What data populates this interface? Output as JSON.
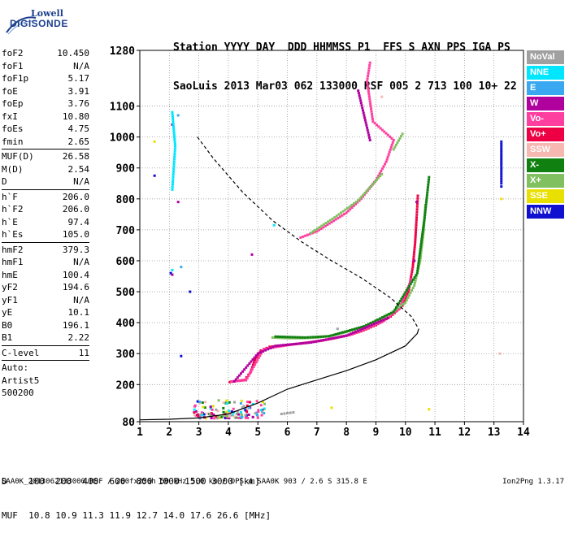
{
  "logo": {
    "line1": "Lowell",
    "line2": "DIGISONDE"
  },
  "header": {
    "line1": "Station YYYY DAY  DDD HHMMSS P1  FFS S AXN PPS IGA PS",
    "line2": "SaoLuis 2013 Mar03 062 133000 RSF 005 2 713 100 10+ 22"
  },
  "params": {
    "group1": [
      {
        "k": "foF2",
        "v": "10.450"
      },
      {
        "k": "foF1",
        "v": "N/A"
      },
      {
        "k": "foF1p",
        "v": "5.17"
      },
      {
        "k": "foE",
        "v": "3.91"
      },
      {
        "k": "foEp",
        "v": "3.76"
      },
      {
        "k": "fxI",
        "v": "10.80"
      },
      {
        "k": "foEs",
        "v": "4.75"
      },
      {
        "k": "fmin",
        "v": "2.65"
      }
    ],
    "group2": [
      {
        "k": "MUF(D)",
        "v": "26.58"
      },
      {
        "k": "M(D)",
        "v": "2.54"
      },
      {
        "k": "D",
        "v": "N/A"
      }
    ],
    "group3": [
      {
        "k": "h`F",
        "v": "206.0"
      },
      {
        "k": "h`F2",
        "v": "206.0"
      },
      {
        "k": "h`E",
        "v": "97.4"
      },
      {
        "k": "h`Es",
        "v": "105.0"
      }
    ],
    "group4": [
      {
        "k": "hmF2",
        "v": "379.3"
      },
      {
        "k": "hmF1",
        "v": "N/A"
      },
      {
        "k": "hmE",
        "v": "100.4"
      },
      {
        "k": "yF2",
        "v": "194.6"
      },
      {
        "k": "yF1",
        "v": "N/A"
      },
      {
        "k": "yE",
        "v": "10.1"
      },
      {
        "k": "B0",
        "v": "196.1"
      },
      {
        "k": "B1",
        "v": "2.22"
      }
    ],
    "group5": [
      {
        "k": "C-level",
        "v": "11"
      }
    ],
    "auto": [
      "Auto:",
      "Artist5",
      "500200"
    ]
  },
  "legend": [
    {
      "label": "NoVal",
      "color": "#a0a0a0"
    },
    {
      "label": "NNE",
      "color": "#00e6ff"
    },
    {
      "label": "E",
      "color": "#3aa8f0"
    },
    {
      "label": "W",
      "color": "#b0009e"
    },
    {
      "label": "Vo-",
      "color": "#ff3fa0"
    },
    {
      "label": "Vo+",
      "color": "#ee0044"
    },
    {
      "label": "SSW",
      "color": "#f6b8b0"
    },
    {
      "label": "X-",
      "color": "#108010"
    },
    {
      "label": "X+",
      "color": "#80c060"
    },
    {
      "label": "SSE",
      "color": "#e8e000"
    },
    {
      "label": "NNW",
      "color": "#1010d0"
    }
  ],
  "footer": {
    "line1": "D    100  200  400  600  800 1000 1500 3000 [km]",
    "line2": "MUF  10.8 10.9 11.3 11.9 12.7 14.0 17.6 26.6 [MHz]",
    "status": "SAA0K_2013062133000.RSF / 260fx256h 50 kHz 5.0 km / DPS-4 SAA0K 903 / 2.6 S 315.8 E",
    "version": "Ion2Png 1.3.17"
  },
  "chart_data": {
    "type": "scatter",
    "xlim": [
      1,
      14
    ],
    "ylim": [
      80,
      1280
    ],
    "x_ticks": [
      1,
      2,
      3,
      4,
      5,
      6,
      7,
      8,
      9,
      10,
      11,
      12,
      13,
      14
    ],
    "y_ticks": [
      80,
      200,
      300,
      400,
      500,
      600,
      700,
      800,
      900,
      1000,
      1100,
      1280
    ],
    "grid": true,
    "series": [
      {
        "name": "Vo+",
        "color": "#ee0044",
        "points": [
          [
            4.05,
            208
          ],
          [
            4.3,
            212
          ],
          [
            4.55,
            215
          ],
          [
            4.75,
            240
          ],
          [
            4.9,
            280
          ],
          [
            5.1,
            310
          ],
          [
            5.4,
            322
          ],
          [
            6.0,
            328
          ],
          [
            6.5,
            333
          ],
          [
            7.0,
            340
          ],
          [
            7.5,
            348
          ],
          [
            8.0,
            358
          ],
          [
            8.5,
            372
          ],
          [
            9.0,
            392
          ],
          [
            9.5,
            420
          ],
          [
            9.9,
            455
          ],
          [
            10.1,
            500
          ],
          [
            10.25,
            580
          ],
          [
            10.33,
            660
          ],
          [
            10.38,
            740
          ],
          [
            10.42,
            810
          ]
        ]
      },
      {
        "name": "Vo-",
        "color": "#ff3fa0",
        "points": [
          [
            4.1,
            210
          ],
          [
            4.6,
            214
          ],
          [
            5.2,
            315
          ],
          [
            6.2,
            330
          ],
          [
            7.2,
            342
          ],
          [
            8.2,
            362
          ],
          [
            9.2,
            402
          ],
          [
            9.8,
            445
          ],
          [
            10.2,
            540
          ],
          [
            6.45,
            675
          ],
          [
            7.0,
            695
          ],
          [
            7.5,
            725
          ],
          [
            8.0,
            755
          ],
          [
            8.5,
            800
          ],
          [
            9.0,
            860
          ],
          [
            9.35,
            920
          ],
          [
            9.6,
            990
          ],
          [
            8.9,
            1050
          ],
          [
            8.7,
            1180
          ],
          [
            8.8,
            1240
          ]
        ]
      },
      {
        "name": "X+",
        "color": "#80c060",
        "points": [
          [
            5.5,
            352
          ],
          [
            6.0,
            350
          ],
          [
            6.5,
            350
          ],
          [
            7.0,
            352
          ],
          [
            7.5,
            358
          ],
          [
            8.0,
            370
          ],
          [
            8.5,
            385
          ],
          [
            9.0,
            405
          ],
          [
            9.5,
            430
          ],
          [
            10.0,
            465
          ],
          [
            10.3,
            520
          ],
          [
            10.5,
            600
          ],
          [
            10.62,
            700
          ],
          [
            10.68,
            780
          ],
          [
            9.6,
            960
          ],
          [
            9.9,
            1010
          ],
          [
            6.8,
            690
          ],
          [
            7.6,
            740
          ],
          [
            8.4,
            795
          ],
          [
            9.2,
            880
          ]
        ]
      },
      {
        "name": "X-",
        "color": "#108010",
        "points": [
          [
            5.6,
            355
          ],
          [
            6.6,
            352
          ],
          [
            7.4,
            356
          ],
          [
            8.6,
            388
          ],
          [
            9.6,
            435
          ],
          [
            10.4,
            560
          ],
          [
            10.65,
            740
          ],
          [
            10.8,
            870
          ]
        ]
      },
      {
        "name": "W",
        "color": "#b0009e",
        "points": [
          [
            4.2,
            210
          ],
          [
            5.0,
            300
          ],
          [
            5.6,
            325
          ],
          [
            6.8,
            336
          ],
          [
            8.0,
            358
          ],
          [
            9.4,
            415
          ],
          [
            10.3,
            600
          ],
          [
            10.38,
            790
          ],
          [
            8.8,
            990
          ],
          [
            8.4,
            1150
          ],
          [
            2.1,
            1040
          ],
          [
            2.3,
            790
          ],
          [
            4.8,
            620
          ],
          [
            2.1,
            555
          ]
        ]
      },
      {
        "name": "NNE",
        "color": "#00e6ff",
        "points": [
          [
            2.1,
            1080
          ],
          [
            2.2,
            970
          ],
          [
            2.1,
            830
          ],
          [
            2.1,
            570
          ],
          [
            5.55,
            715
          ]
        ]
      },
      {
        "name": "E",
        "color": "#3aa8f0",
        "points": [
          [
            2.3,
            1070
          ],
          [
            2.4,
            580
          ]
        ]
      },
      {
        "name": "NNW",
        "color": "#1010d0",
        "points": [
          [
            1.5,
            875
          ],
          [
            2.05,
            560
          ],
          [
            2.4,
            292
          ],
          [
            2.7,
            500
          ],
          [
            13.25,
            985
          ],
          [
            13.25,
            850
          ],
          [
            13.25,
            840
          ]
        ]
      },
      {
        "name": "SSE",
        "color": "#e8e000",
        "points": [
          [
            1.5,
            985
          ],
          [
            7.5,
            125
          ],
          [
            10.8,
            120
          ],
          [
            13.25,
            800
          ]
        ]
      },
      {
        "name": "NoVal",
        "color": "#a0a0a0",
        "points": [
          [
            5.8,
            105
          ],
          [
            6.2,
            110
          ],
          [
            7.7,
            380
          ]
        ]
      },
      {
        "name": "SSW",
        "color": "#f6b8b0",
        "points": [
          [
            13.2,
            300
          ],
          [
            9.2,
            1130
          ]
        ]
      }
    ],
    "model_profile": {
      "style": "solid",
      "points": [
        [
          1,
          86
        ],
        [
          2,
          88
        ],
        [
          3,
          92
        ],
        [
          4,
          105
        ],
        [
          5,
          140
        ],
        [
          6,
          185
        ],
        [
          7,
          215
        ],
        [
          8,
          245
        ],
        [
          9,
          280
        ],
        [
          10,
          325
        ],
        [
          10.4,
          365
        ],
        [
          10.45,
          380
        ]
      ]
    },
    "muf_curve": {
      "style": "dashed",
      "points": [
        [
          2.95,
          1000
        ],
        [
          3.5,
          930
        ],
        [
          4.5,
          820
        ],
        [
          5.5,
          730
        ],
        [
          6.5,
          660
        ],
        [
          7.5,
          600
        ],
        [
          8.5,
          545
        ],
        [
          9.5,
          480
        ],
        [
          10.2,
          420
        ],
        [
          10.45,
          380
        ]
      ]
    },
    "sporadic_E": {
      "x_range": [
        2.8,
        5.2
      ],
      "y_range": [
        95,
        155
      ]
    }
  }
}
